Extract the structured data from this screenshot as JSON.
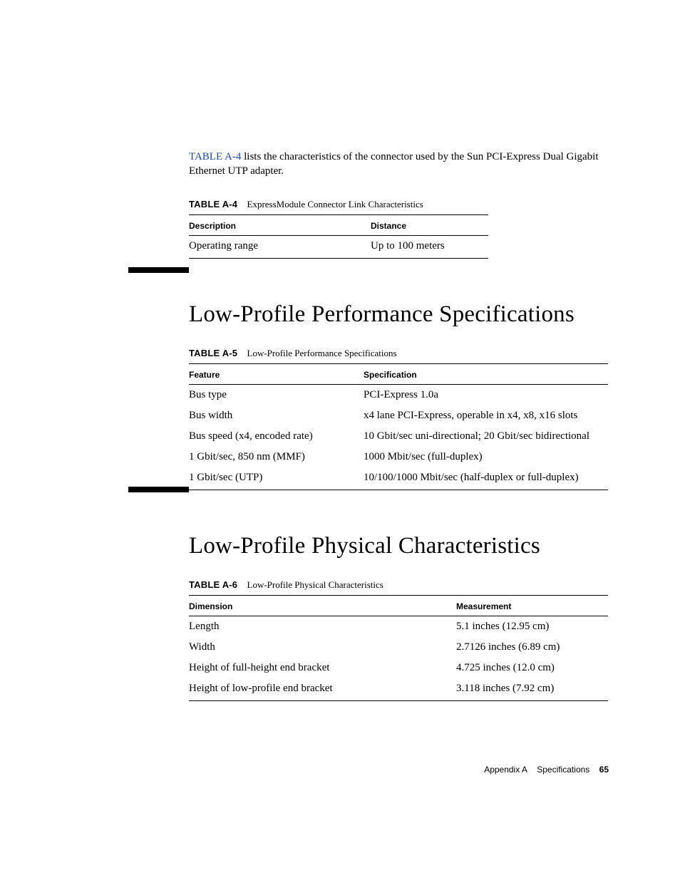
{
  "intro": {
    "xref": "TABLE A-4",
    "rest": " lists the characteristics of the connector used by the Sun PCI-Express Dual Gigabit Ethernet UTP adapter."
  },
  "tableA4": {
    "label": "TABLE A-4",
    "caption": "ExpressModule Connector Link Characteristics",
    "headers": [
      "Description",
      "Distance"
    ],
    "rows": [
      [
        "Operating range",
        "Up to 100 meters"
      ]
    ]
  },
  "section1": "Low-Profile Performance Specifications",
  "tableA5": {
    "label": "TABLE A-5",
    "caption": "Low-Profile Performance Specifications",
    "headers": [
      "Feature",
      "Specification"
    ],
    "rows": [
      [
        "Bus type",
        "PCI-Express 1.0a"
      ],
      [
        "Bus width",
        "x4 lane PCI-Express, operable in x4, x8, x16 slots"
      ],
      [
        "Bus speed (x4, encoded rate)",
        "10 Gbit/sec uni-directional; 20 Gbit/sec bidirectional"
      ],
      [
        "1 Gbit/sec, 850 nm (MMF)",
        "1000 Mbit/sec (full-duplex)"
      ],
      [
        "1 Gbit/sec (UTP)",
        "10/100/1000 Mbit/sec (half-duplex or full-duplex)"
      ]
    ]
  },
  "section2": "Low-Profile Physical Characteristics",
  "tableA6": {
    "label": "TABLE A-6",
    "caption": "Low-Profile Physical Characteristics",
    "headers": [
      "Dimension",
      "Measurement"
    ],
    "rows": [
      [
        "Length",
        "5.1 inches (12.95 cm)"
      ],
      [
        "Width",
        "2.7126 inches (6.89 cm)"
      ],
      [
        "Height of full-height end bracket",
        "4.725 inches (12.0 cm)"
      ],
      [
        "Height of low-profile end bracket",
        "3.118 inches (7.92 cm)"
      ]
    ]
  },
  "footer": {
    "appendix": "Appendix A",
    "title": "Specifications",
    "page": "65"
  }
}
